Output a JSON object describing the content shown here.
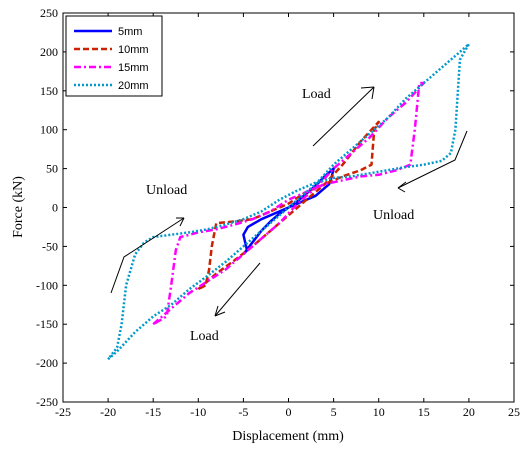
{
  "chart_data": {
    "type": "line",
    "xlabel": "Displacement (mm)",
    "ylabel": "Force (kN)",
    "xlim": [
      -25,
      25
    ],
    "ylim": [
      -250,
      250
    ],
    "xticks": [
      -25,
      -20,
      -15,
      -10,
      -5,
      0,
      5,
      10,
      15,
      20,
      25
    ],
    "yticks": [
      -250,
      -200,
      -150,
      -100,
      -50,
      0,
      50,
      100,
      150,
      200,
      250
    ],
    "grid": false,
    "legend_position": "top-left",
    "series": [
      {
        "name": "5mm",
        "color": "#0000ff",
        "style": "solid",
        "x": [
          -5,
          -4,
          -3,
          -2,
          -1,
          0,
          1,
          2,
          3,
          4,
          5,
          4.8,
          4.5,
          3,
          1,
          -1,
          -3,
          -4.5,
          -5,
          -4.8,
          -4.6,
          -5
        ],
        "y": [
          -60,
          -45,
          -30,
          -18,
          -8,
          0,
          8,
          18,
          28,
          40,
          50,
          40,
          30,
          15,
          5,
          -5,
          -15,
          -25,
          -35,
          -45,
          -55,
          -60
        ]
      },
      {
        "name": "10mm",
        "color": "#cc2200",
        "style": "dashed",
        "x": [
          -10,
          -8,
          -6,
          -4,
          -2,
          0,
          2,
          4,
          6,
          8,
          10,
          9.5,
          9.2,
          8,
          6,
          4,
          2,
          0,
          -2,
          -4,
          -6,
          -8,
          -8.5,
          -8.8,
          -9.2,
          -10
        ],
        "y": [
          -105,
          -85,
          -68,
          -50,
          -30,
          -10,
          10,
          30,
          55,
          85,
          110,
          100,
          55,
          48,
          40,
          30,
          20,
          5,
          -5,
          -15,
          -18,
          -20,
          -50,
          -80,
          -100,
          -105
        ]
      },
      {
        "name": "15mm",
        "color": "#ff00ff",
        "style": "dashdot",
        "x": [
          -15,
          -13,
          -11,
          -9,
          -7,
          -5,
          -3,
          -1,
          1,
          3,
          5,
          7,
          9,
          11,
          13,
          15,
          14.5,
          14,
          13.5,
          12,
          10,
          8,
          6,
          4,
          2,
          0,
          -2,
          -4,
          -6,
          -8,
          -10,
          -12,
          -12.5,
          -13,
          -13.5,
          -15
        ],
        "y": [
          -150,
          -130,
          -110,
          -95,
          -80,
          -60,
          -40,
          -20,
          5,
          25,
          50,
          70,
          90,
          115,
          135,
          160,
          160,
          100,
          55,
          48,
          42,
          40,
          35,
          30,
          20,
          10,
          -5,
          -15,
          -22,
          -28,
          -32,
          -38,
          -55,
          -100,
          -140,
          -150
        ]
      },
      {
        "name": "20mm",
        "color": "#0099cc",
        "style": "dotted",
        "x": [
          -20,
          -19,
          -17,
          -15,
          -13,
          -11,
          -9,
          -7,
          -5,
          -3,
          -1,
          1,
          3,
          5,
          7,
          9,
          11,
          13,
          15,
          17,
          19,
          20,
          19,
          18.5,
          18,
          17,
          15,
          13,
          11,
          9,
          7,
          5,
          3,
          1,
          -1,
          -3,
          -5,
          -7,
          -9,
          -11,
          -13,
          -15,
          -16,
          -17,
          -18,
          -18.5,
          -19,
          -20
        ],
        "y": [
          -195,
          -185,
          -160,
          -140,
          -125,
          -105,
          -88,
          -70,
          -50,
          -30,
          -10,
          10,
          30,
          55,
          75,
          95,
          115,
          140,
          160,
          180,
          200,
          210,
          190,
          100,
          70,
          60,
          55,
          52,
          48,
          44,
          40,
          38,
          32,
          22,
          10,
          -5,
          -15,
          -22,
          -28,
          -32,
          -35,
          -38,
          -45,
          -60,
          -100,
          -150,
          -180,
          -195
        ]
      }
    ],
    "annotations": [
      "Load",
      "Unload",
      "Unload",
      "Load"
    ]
  }
}
